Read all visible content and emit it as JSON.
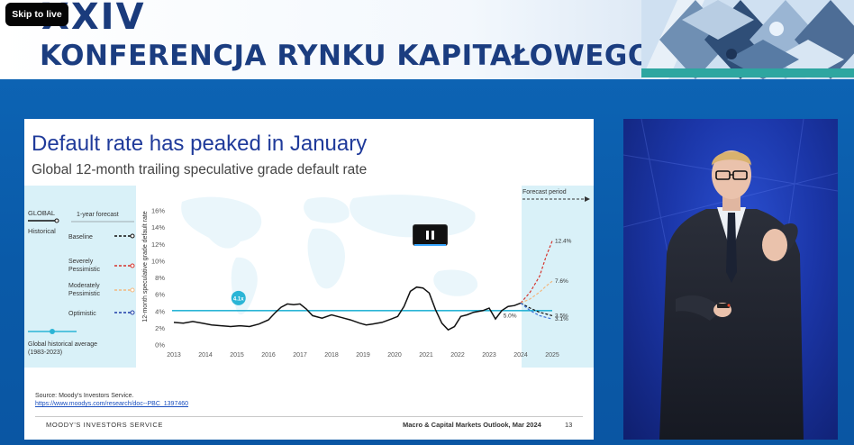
{
  "skip": {
    "label": "Skip to live"
  },
  "banner": {
    "small_title": "XXIV",
    "title": "KONFERENCJA RYNKU KAPITAŁOWEGO"
  },
  "slide": {
    "title": "Default rate has peaked in January",
    "subtitle": "Global 12-month trailing speculative grade default rate",
    "source_label": "Source: Moody's Investors Service.",
    "source_link": "https://www.moodys.com/research/doc--PBC_1397460",
    "footer_left": "MOODY'S INVESTORS SERVICE",
    "footer_right": "Macro & Capital Markets Outlook, Mar 2024",
    "page_number": "13"
  },
  "legend": {
    "global": "GLOBAL",
    "forecast_header": "1-year forecast",
    "historical": "Historical",
    "baseline": "Baseline",
    "severely_1": "Severely",
    "severely_2": "Pessimistic",
    "moderately_1": "Moderately",
    "moderately_2": "Pessimistic",
    "optimistic": "Optimistic",
    "average_1": "Global historical average",
    "average_2": "(1983-2023)"
  },
  "chart_data": {
    "type": "line",
    "title": "Global 12-month trailing speculative grade default rate",
    "ylabel": "12-month speculative grade default rate",
    "xlabel": "",
    "ylim": [
      0,
      16
    ],
    "xlim": [
      2013,
      2025
    ],
    "y_ticks": [
      "0%",
      "2%",
      "4%",
      "6%",
      "8%",
      "10%",
      "12%",
      "14%",
      "16%"
    ],
    "x_ticks": [
      "2013",
      "2014",
      "2015",
      "2016",
      "2017",
      "2018",
      "2019",
      "2020",
      "2021",
      "2022",
      "2023",
      "2024",
      "2025"
    ],
    "forecast_label": "Forecast period",
    "forecast_start": 2024,
    "average": {
      "value": 4.1,
      "label": "4.1x"
    },
    "series": [
      {
        "name": "Historical",
        "color": "#111111",
        "x": [
          2013.0,
          2013.3,
          2013.6,
          2013.9,
          2014.2,
          2014.5,
          2014.8,
          2015.1,
          2015.4,
          2015.7,
          2016.0,
          2016.2,
          2016.4,
          2016.6,
          2016.8,
          2017.0,
          2017.2,
          2017.4,
          2017.7,
          2018.0,
          2018.3,
          2018.6,
          2018.9,
          2019.1,
          2019.3,
          2019.6,
          2019.9,
          2020.1,
          2020.3,
          2020.5,
          2020.7,
          2020.9,
          2021.1,
          2021.3,
          2021.5,
          2021.7,
          2021.9,
          2022.1,
          2022.3,
          2022.5,
          2022.8,
          2023.0,
          2023.2,
          2023.4,
          2023.6,
          2023.8,
          2024.0
        ],
        "y": [
          2.7,
          2.6,
          2.8,
          2.6,
          2.4,
          2.3,
          2.2,
          2.3,
          2.2,
          2.5,
          3.0,
          3.8,
          4.5,
          4.9,
          4.8,
          4.9,
          4.3,
          3.5,
          3.2,
          3.6,
          3.3,
          3.0,
          2.6,
          2.4,
          2.5,
          2.7,
          3.1,
          3.4,
          4.6,
          6.4,
          6.9,
          6.8,
          6.2,
          4.2,
          2.6,
          1.8,
          2.2,
          3.4,
          3.6,
          3.9,
          4.1,
          4.4,
          3.1,
          4.1,
          4.6,
          4.7,
          5.0
        ]
      },
      {
        "name": "Severely Pessimistic",
        "color": "#d6342d",
        "x": [
          2024.0,
          2024.3,
          2024.6,
          2024.8,
          2025.0
        ],
        "y": [
          5.0,
          6.3,
          8.2,
          10.5,
          12.4
        ],
        "end_label": "12.4%"
      },
      {
        "name": "Moderately Pessimistic",
        "color": "#f2b880",
        "x": [
          2024.0,
          2024.3,
          2024.6,
          2024.8,
          2025.0
        ],
        "y": [
          5.0,
          5.5,
          6.3,
          7.0,
          7.6
        ],
        "end_label": "7.6%"
      },
      {
        "name": "Baseline",
        "color": "#111111",
        "x": [
          2024.0,
          2024.3,
          2024.6,
          2024.8,
          2025.0
        ],
        "y": [
          5.0,
          4.4,
          3.9,
          3.7,
          3.5
        ],
        "end_label": "3.5%"
      },
      {
        "name": "Optimistic",
        "color": "#3a6fd8",
        "x": [
          2024.0,
          2024.3,
          2024.6,
          2024.8,
          2025.0
        ],
        "y": [
          5.0,
          4.1,
          3.5,
          3.3,
          3.1
        ],
        "end_label": "3.1%"
      }
    ],
    "annotations": [
      {
        "x": 2023.45,
        "y": 3.3,
        "label": "5.0%"
      }
    ]
  }
}
